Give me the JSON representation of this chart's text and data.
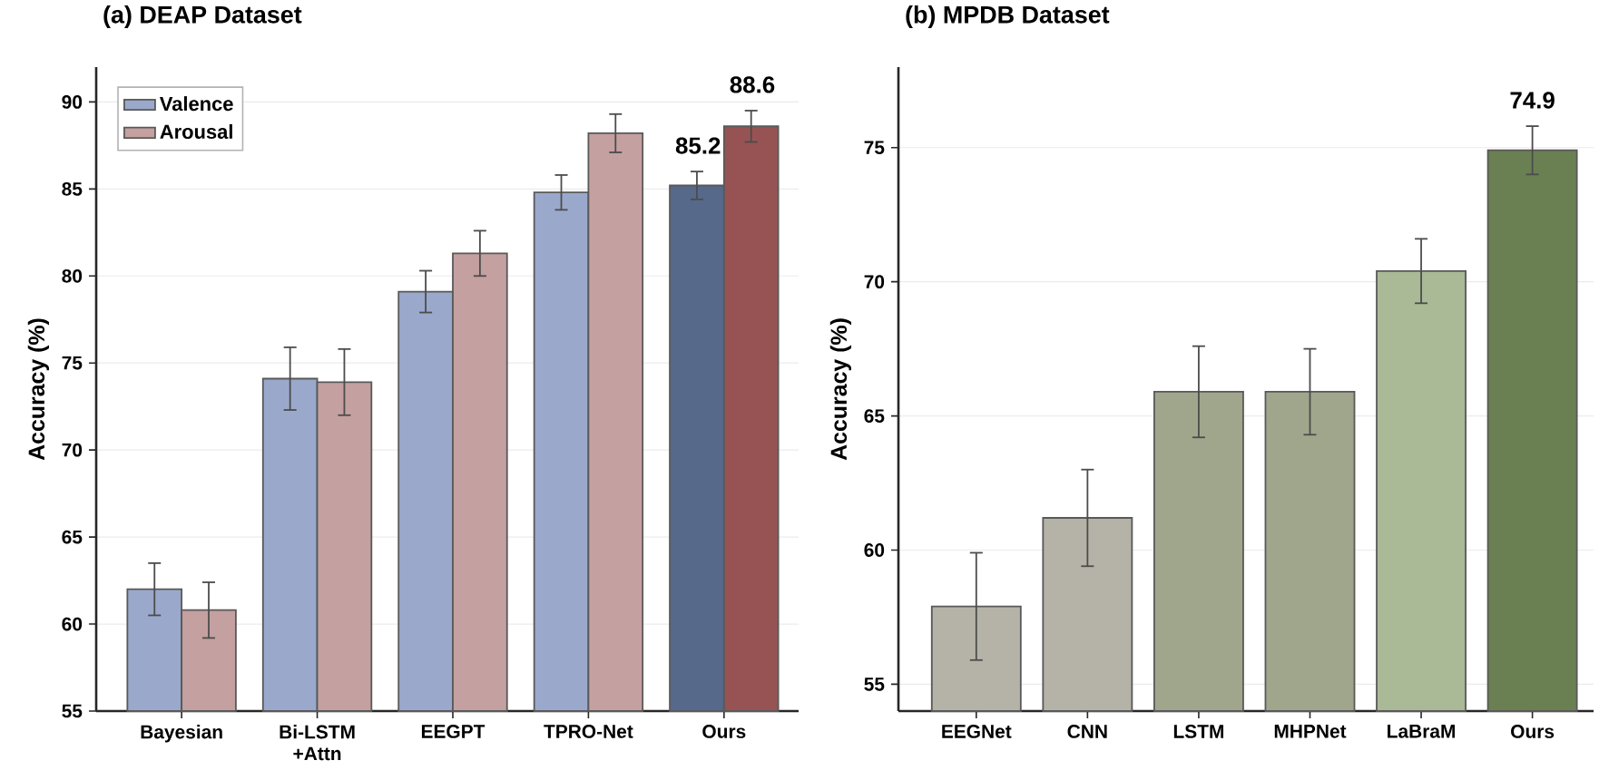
{
  "chart_data": [
    {
      "type": "bar",
      "title": "(a) DEAP Dataset",
      "ylabel": "Accuracy (%)",
      "categories": [
        "Bayesian",
        "Bi-LSTM +Attn",
        "EEGPT",
        "TPRO-Net",
        "Ours"
      ],
      "series": [
        {
          "name": "Valence",
          "color": "#9aa9cb",
          "colors": [
            "#9aa9cb",
            "#9aa9cb",
            "#9aa9cb",
            "#9aa9cb",
            "#56698a"
          ],
          "values": [
            62.0,
            74.1,
            79.1,
            84.8,
            85.2
          ],
          "errors": [
            1.5,
            1.8,
            1.2,
            1.0,
            0.8
          ],
          "value_labels": [
            null,
            null,
            null,
            null,
            "85.2"
          ]
        },
        {
          "name": "Arousal",
          "color": "#c5a0a0",
          "colors": [
            "#c5a0a0",
            "#c5a0a0",
            "#c5a0a0",
            "#c5a0a0",
            "#975353"
          ],
          "values": [
            60.8,
            73.9,
            81.3,
            88.2,
            88.6
          ],
          "errors": [
            1.6,
            1.9,
            1.3,
            1.1,
            0.9
          ],
          "value_labels": [
            null,
            null,
            null,
            null,
            "88.6"
          ]
        }
      ],
      "ylim": [
        55,
        92
      ],
      "yticks": [
        55,
        60,
        65,
        70,
        75,
        80,
        85,
        90
      ],
      "grid": "y",
      "legend": "top left"
    },
    {
      "type": "bar",
      "title": "(b) MPDB Dataset",
      "ylabel": "Accuracy (%)",
      "categories": [
        "EEGNet",
        "CNN",
        "LSTM",
        "MHPNet",
        "LaBraM",
        "Ours"
      ],
      "values": [
        57.9,
        61.2,
        65.9,
        65.9,
        70.4,
        74.9
      ],
      "colors": [
        "#b5b2a8",
        "#b5b2a8",
        "#a0a68c",
        "#a0a68c",
        "#aab996",
        "#6a8052"
      ],
      "errors": [
        2.0,
        1.8,
        1.7,
        1.6,
        1.2,
        0.9
      ],
      "value_labels": [
        null,
        null,
        null,
        null,
        null,
        "74.9"
      ],
      "ylim": [
        54,
        78
      ],
      "yticks": [
        55,
        60,
        65,
        70,
        75
      ],
      "grid": "y"
    }
  ]
}
